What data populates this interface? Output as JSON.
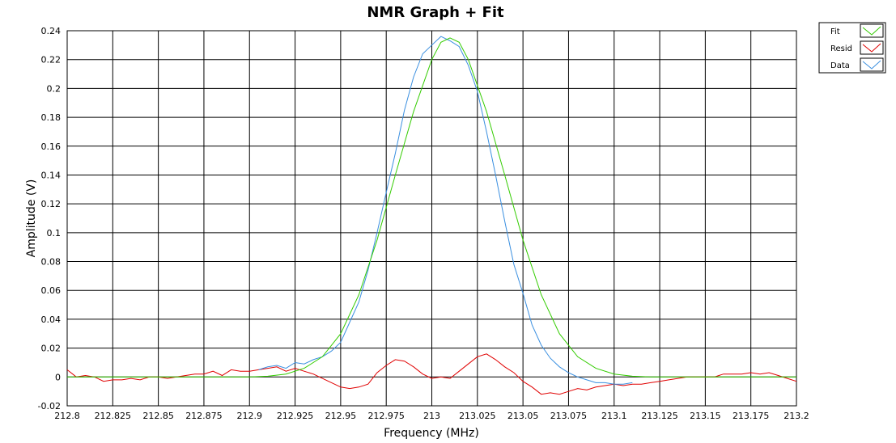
{
  "chart_data": {
    "type": "line",
    "title": "NMR Graph + Fit",
    "xlabel": "Frequency (MHz)",
    "ylabel": "Amplitude (V)",
    "xlim": [
      212.8,
      213.2
    ],
    "ylim": [
      -0.02,
      0.24
    ],
    "grid": true,
    "legend_position": "top-right outside",
    "x_ticks": [
      "212.8",
      "212.825",
      "212.85",
      "212.875",
      "212.9",
      "212.925",
      "212.95",
      "212.975",
      "213",
      "213.025",
      "213.05",
      "213.075",
      "213.1",
      "213.125",
      "213.15",
      "213.175",
      "213.2"
    ],
    "y_ticks": [
      "0.24",
      "0.22",
      "0.2",
      "0.18",
      "0.16",
      "0.14",
      "0.12",
      "0.1",
      "0.08",
      "0.06",
      "0.04",
      "0.02",
      "0",
      "-0.02"
    ],
    "series": [
      {
        "name": "Fit",
        "color": "#33cc00",
        "points": [
          [
            212.8,
            0
          ],
          [
            212.9,
            0
          ],
          [
            212.91,
            0.0005
          ],
          [
            212.92,
            0.002
          ],
          [
            212.93,
            0.006
          ],
          [
            212.94,
            0.014
          ],
          [
            212.95,
            0.03
          ],
          [
            212.96,
            0.057
          ],
          [
            212.97,
            0.095
          ],
          [
            212.98,
            0.14
          ],
          [
            212.99,
            0.184
          ],
          [
            213.0,
            0.22
          ],
          [
            213.005,
            0.232
          ],
          [
            213.01,
            0.235
          ],
          [
            213.015,
            0.232
          ],
          [
            213.02,
            0.22
          ],
          [
            213.03,
            0.184
          ],
          [
            213.04,
            0.14
          ],
          [
            213.05,
            0.095
          ],
          [
            213.06,
            0.057
          ],
          [
            213.07,
            0.03
          ],
          [
            213.08,
            0.014
          ],
          [
            213.09,
            0.006
          ],
          [
            213.1,
            0.002
          ],
          [
            213.11,
            0.0005
          ],
          [
            213.12,
            0
          ],
          [
            213.2,
            0
          ]
        ]
      },
      {
        "name": "Resid",
        "color": "#e00000",
        "points": [
          [
            212.8,
            0.005
          ],
          [
            212.805,
            0
          ],
          [
            212.81,
            0.001
          ],
          [
            212.815,
            0
          ],
          [
            212.82,
            -0.003
          ],
          [
            212.825,
            -0.002
          ],
          [
            212.83,
            -0.002
          ],
          [
            212.835,
            -0.001
          ],
          [
            212.84,
            -0.002
          ],
          [
            212.845,
            0
          ],
          [
            212.85,
            0
          ],
          [
            212.855,
            -0.001
          ],
          [
            212.86,
            0
          ],
          [
            212.865,
            0.001
          ],
          [
            212.87,
            0.002
          ],
          [
            212.875,
            0.002
          ],
          [
            212.88,
            0.004
          ],
          [
            212.885,
            0.001
          ],
          [
            212.89,
            0.005
          ],
          [
            212.895,
            0.004
          ],
          [
            212.9,
            0.004
          ],
          [
            212.905,
            0.005
          ],
          [
            212.91,
            0.006
          ],
          [
            212.915,
            0.007
          ],
          [
            212.92,
            0.004
          ],
          [
            212.925,
            0.006
          ],
          [
            212.93,
            0.004
          ],
          [
            212.935,
            0.002
          ],
          [
            212.94,
            -0.001
          ],
          [
            212.945,
            -0.004
          ],
          [
            212.95,
            -0.007
          ],
          [
            212.955,
            -0.008
          ],
          [
            212.96,
            -0.007
          ],
          [
            212.965,
            -0.005
          ],
          [
            212.97,
            0.003
          ],
          [
            212.975,
            0.008
          ],
          [
            212.98,
            0.012
          ],
          [
            212.985,
            0.011
          ],
          [
            212.99,
            0.007
          ],
          [
            212.995,
            0.002
          ],
          [
            213.0,
            -0.001
          ],
          [
            213.005,
            0
          ],
          [
            213.01,
            -0.001
          ],
          [
            213.015,
            0.004
          ],
          [
            213.02,
            0.009
          ],
          [
            213.025,
            0.014
          ],
          [
            213.03,
            0.016
          ],
          [
            213.035,
            0.012
          ],
          [
            213.04,
            0.007
          ],
          [
            213.045,
            0.003
          ],
          [
            213.05,
            -0.003
          ],
          [
            213.055,
            -0.007
          ],
          [
            213.06,
            -0.012
          ],
          [
            213.065,
            -0.011
          ],
          [
            213.07,
            -0.012
          ],
          [
            213.075,
            -0.01
          ],
          [
            213.08,
            -0.008
          ],
          [
            213.085,
            -0.009
          ],
          [
            213.09,
            -0.007
          ],
          [
            213.095,
            -0.006
          ],
          [
            213.1,
            -0.005
          ],
          [
            213.105,
            -0.006
          ],
          [
            213.11,
            -0.005
          ],
          [
            213.115,
            -0.005
          ],
          [
            213.12,
            -0.004
          ],
          [
            213.125,
            -0.003
          ],
          [
            213.13,
            -0.002
          ],
          [
            213.135,
            -0.001
          ],
          [
            213.14,
            0
          ],
          [
            213.145,
            0
          ],
          [
            213.15,
            0
          ],
          [
            213.155,
            0
          ],
          [
            213.16,
            0.002
          ],
          [
            213.165,
            0.002
          ],
          [
            213.17,
            0.002
          ],
          [
            213.175,
            0.003
          ],
          [
            213.18,
            0.002
          ],
          [
            213.185,
            0.003
          ],
          [
            213.19,
            0.001
          ],
          [
            213.195,
            -0.001
          ],
          [
            213.2,
            -0.003
          ]
        ]
      },
      {
        "name": "Data",
        "color": "#3a8fe0",
        "points": [
          [
            212.905,
            0.005
          ],
          [
            212.91,
            0.007
          ],
          [
            212.915,
            0.008
          ],
          [
            212.92,
            0.006
          ],
          [
            212.925,
            0.01
          ],
          [
            212.93,
            0.009
          ],
          [
            212.935,
            0.012
          ],
          [
            212.94,
            0.014
          ],
          [
            212.945,
            0.018
          ],
          [
            212.95,
            0.024
          ],
          [
            212.955,
            0.038
          ],
          [
            212.96,
            0.052
          ],
          [
            212.965,
            0.074
          ],
          [
            212.97,
            0.1
          ],
          [
            212.975,
            0.128
          ],
          [
            212.98,
            0.155
          ],
          [
            212.985,
            0.185
          ],
          [
            212.99,
            0.208
          ],
          [
            212.995,
            0.224
          ],
          [
            213.0,
            0.23
          ],
          [
            213.005,
            0.236
          ],
          [
            213.01,
            0.233
          ],
          [
            213.015,
            0.229
          ],
          [
            213.02,
            0.216
          ],
          [
            213.025,
            0.198
          ],
          [
            213.03,
            0.17
          ],
          [
            213.035,
            0.14
          ],
          [
            213.04,
            0.108
          ],
          [
            213.045,
            0.078
          ],
          [
            213.05,
            0.058
          ],
          [
            213.055,
            0.036
          ],
          [
            213.06,
            0.022
          ],
          [
            213.065,
            0.013
          ],
          [
            213.07,
            0.007
          ],
          [
            213.075,
            0.003
          ],
          [
            213.08,
            0
          ],
          [
            213.085,
            -0.002
          ],
          [
            213.09,
            -0.004
          ],
          [
            213.095,
            -0.004
          ],
          [
            213.1,
            -0.005
          ],
          [
            213.105,
            -0.005
          ],
          [
            213.11,
            -0.004
          ]
        ]
      }
    ]
  }
}
